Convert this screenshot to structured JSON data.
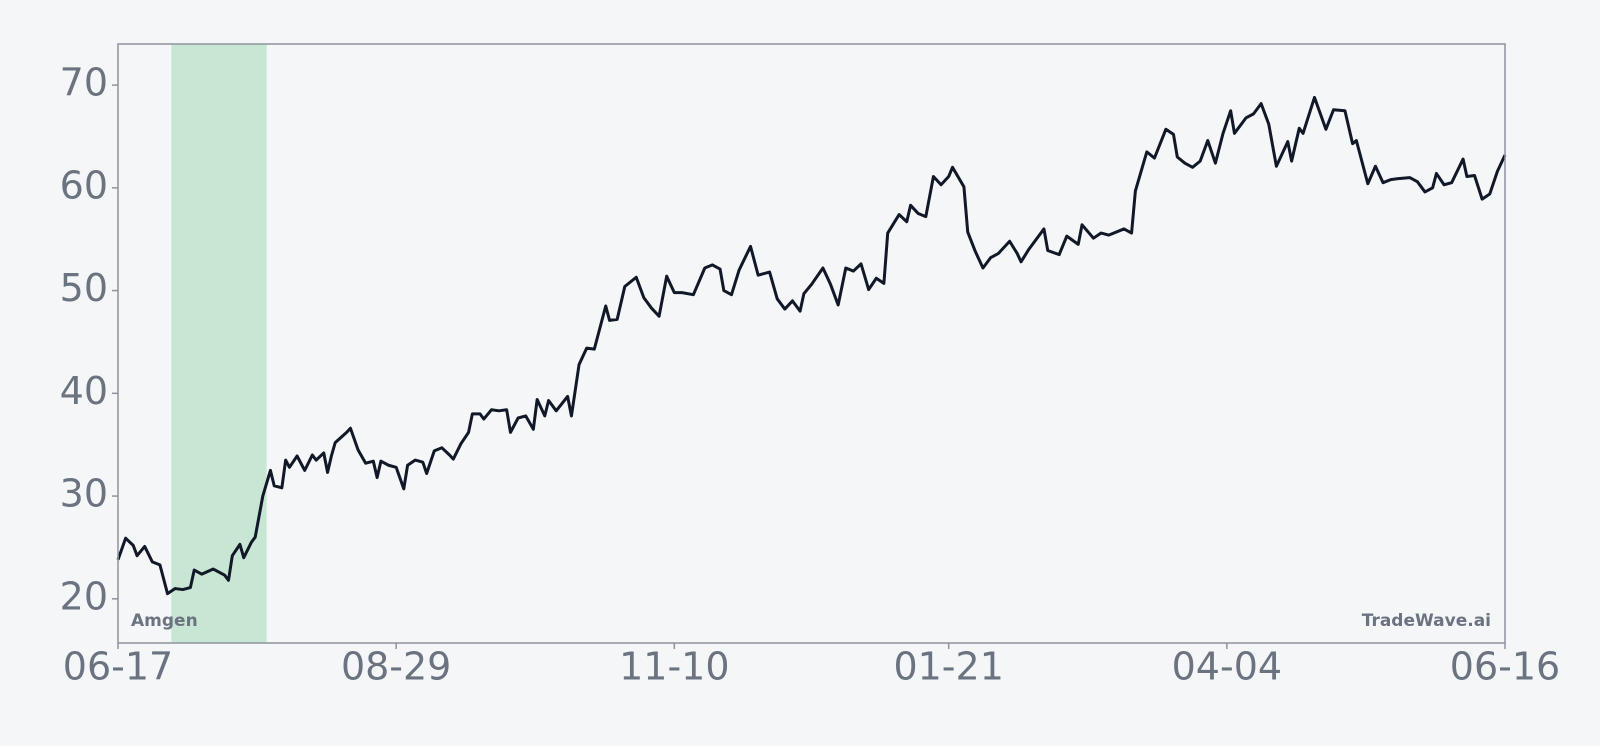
{
  "chart_data": {
    "type": "line",
    "label": "Amgen",
    "watermark": "TradeWave.ai",
    "x": [
      "06-17",
      "06-19",
      "06-21",
      "06-22",
      "06-24",
      "06-26",
      "06-28",
      "06-30",
      "07-02",
      "07-04",
      "07-06",
      "07-07",
      "07-09",
      "07-12",
      "07-15",
      "07-16",
      "07-17",
      "07-19",
      "07-20",
      "07-22",
      "07-23",
      "07-25",
      "07-27",
      "07-28",
      "07-30",
      "07-31",
      "08-01",
      "08-03",
      "08-05",
      "08-07",
      "08-08",
      "08-10",
      "08-11",
      "08-12",
      "08-13",
      "08-16",
      "08-17",
      "08-19",
      "08-21",
      "08-23",
      "08-24",
      "08-25",
      "08-27",
      "08-29",
      "08-31",
      "09-01",
      "09-03",
      "09-05",
      "09-06",
      "09-08",
      "09-10",
      "09-12",
      "09-13",
      "09-15",
      "09-17",
      "09-18",
      "09-20",
      "09-21",
      "09-23",
      "09-25",
      "09-27",
      "09-28",
      "09-30",
      "10-02",
      "10-04",
      "10-05",
      "10-07",
      "10-08",
      "10-10",
      "10-13",
      "10-14",
      "10-16",
      "10-18",
      "10-20",
      "10-23",
      "10-24",
      "10-26",
      "10-28",
      "10-31",
      "11-02",
      "11-04",
      "11-06",
      "11-08",
      "11-10",
      "11-12",
      "11-15",
      "11-18",
      "11-20",
      "11-22",
      "11-23",
      "11-25",
      "11-27",
      "11-30",
      "12-02",
      "12-05",
      "12-07",
      "12-09",
      "12-11",
      "12-13",
      "12-14",
      "12-16",
      "12-19",
      "12-21",
      "12-23",
      "12-25",
      "12-27",
      "12-29",
      "12-31",
      "01-02",
      "01-04",
      "01-05",
      "01-07",
      "01-08",
      "01-10",
      "01-11",
      "01-13",
      "01-15",
      "01-17",
      "01-19",
      "01-21",
      "01-22",
      "01-25",
      "01-26",
      "01-28",
      "01-30",
      "02-01",
      "02-03",
      "02-06",
      "02-08",
      "02-09",
      "02-11",
      "02-15",
      "02-16",
      "02-19",
      "02-21",
      "02-24",
      "02-25",
      "02-28",
      "03-02",
      "03-04",
      "03-08",
      "03-10",
      "03-11",
      "03-14",
      "03-16",
      "03-19",
      "03-21",
      "03-22",
      "03-24",
      "03-26",
      "03-28",
      "03-30",
      "04-01",
      "04-03",
      "04-05",
      "04-06",
      "04-09",
      "04-11",
      "04-13",
      "04-15",
      "04-17",
      "04-20",
      "04-21",
      "04-23",
      "04-24",
      "04-27",
      "04-30",
      "05-02",
      "05-05",
      "05-07",
      "05-08",
      "05-11",
      "05-13",
      "05-15",
      "05-17",
      "05-19",
      "05-22",
      "05-24",
      "05-26",
      "05-28",
      "05-29",
      "05-31",
      "06-02",
      "06-05",
      "06-06",
      "06-08",
      "06-10",
      "06-12",
      "06-14",
      "06-16"
    ],
    "values": [
      23.8,
      25.9,
      25.2,
      24.2,
      25.1,
      23.6,
      23.3,
      20.5,
      21.0,
      20.9,
      21.1,
      22.8,
      22.4,
      22.9,
      22.3,
      21.8,
      24.2,
      25.3,
      24.0,
      25.5,
      26.0,
      30.0,
      32.5,
      31.0,
      30.8,
      33.5,
      32.8,
      33.9,
      32.5,
      34.0,
      33.5,
      34.2,
      32.3,
      33.9,
      35.2,
      36.2,
      36.6,
      34.5,
      33.2,
      33.4,
      31.8,
      33.4,
      33.0,
      32.8,
      30.7,
      33.0,
      33.5,
      33.3,
      32.2,
      34.4,
      34.7,
      34.0,
      33.6,
      35.1,
      36.2,
      38.0,
      38.0,
      37.5,
      38.4,
      38.3,
      38.4,
      36.2,
      37.6,
      37.8,
      36.5,
      39.4,
      37.8,
      39.3,
      38.3,
      39.7,
      37.8,
      42.8,
      44.4,
      44.3,
      48.5,
      47.1,
      47.2,
      50.4,
      51.3,
      49.3,
      48.3,
      47.5,
      51.4,
      49.8,
      49.8,
      49.6,
      52.2,
      52.5,
      52.1,
      50.0,
      49.6,
      52.0,
      54.3,
      51.5,
      51.8,
      49.2,
      48.2,
      49.0,
      48.0,
      49.7,
      50.6,
      52.2,
      50.6,
      48.6,
      52.2,
      51.9,
      52.6,
      50.1,
      51.2,
      50.7,
      55.6,
      56.8,
      57.4,
      56.7,
      58.3,
      57.5,
      57.2,
      61.1,
      60.3,
      61.1,
      62.0,
      60.1,
      55.7,
      53.8,
      52.2,
      53.2,
      53.6,
      54.8,
      53.6,
      52.8,
      54.0,
      56.0,
      53.9,
      53.5,
      55.3,
      54.5,
      56.4,
      55.1,
      55.6,
      55.4,
      56.0,
      55.6,
      59.7,
      63.5,
      62.9,
      65.7,
      65.2,
      63.0,
      62.4,
      62.0,
      62.6,
      64.6,
      62.4,
      65.3,
      67.5,
      65.3,
      66.8,
      67.2,
      68.2,
      66.2,
      62.1,
      64.5,
      62.6,
      65.8,
      65.3,
      68.8,
      65.7,
      67.6,
      67.5,
      64.3,
      64.6,
      60.4,
      62.1,
      60.5,
      60.8,
      60.9,
      61.0,
      60.6,
      59.6,
      60.0,
      61.4,
      60.3,
      60.5,
      62.8,
      61.1,
      61.2,
      58.9,
      59.4,
      61.6,
      63.2
    ],
    "color": "#111827",
    "highlight": {
      "x": [
        "07-01",
        "07-26"
      ],
      "color": "#c8e6d4"
    },
    "xlim": [
      "06-17",
      "06-16"
    ],
    "xticks": [
      "06-17",
      "08-29",
      "11-10",
      "01-21",
      "04-04",
      "06-16"
    ],
    "ylim": [
      15.7,
      74
    ],
    "yticks": [
      20,
      30,
      40,
      50,
      60,
      70
    ]
  }
}
